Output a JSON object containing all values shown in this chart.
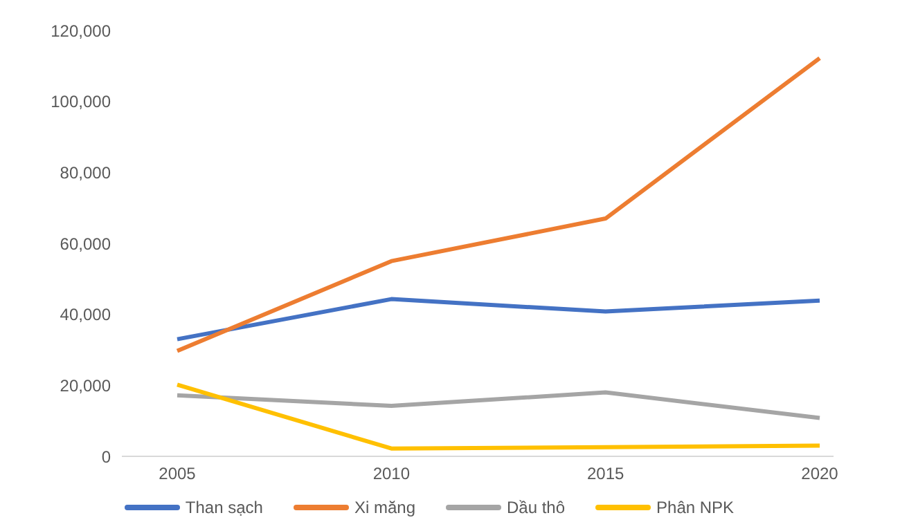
{
  "chart_data": {
    "type": "line",
    "categories": [
      "2005",
      "2010",
      "2015",
      "2020"
    ],
    "series": [
      {
        "name": "Than sạch",
        "color": "#4472c4",
        "values": [
          33000,
          44300,
          40800,
          43900
        ]
      },
      {
        "name": "Xi măng",
        "color": "#ed7d31",
        "values": [
          29700,
          55000,
          67000,
          112200
        ]
      },
      {
        "name": "Dầu thô",
        "color": "#a5a5a5",
        "values": [
          17200,
          14200,
          18000,
          10800
        ]
      },
      {
        "name": "Phân NPK",
        "color": "#ffc000",
        "values": [
          20200,
          2200,
          2600,
          3000
        ]
      }
    ],
    "ylim": [
      0,
      120000
    ],
    "yticks": [
      {
        "value": 0,
        "label": "0"
      },
      {
        "value": 20000,
        "label": "20,000"
      },
      {
        "value": 40000,
        "label": "40,000"
      },
      {
        "value": 60000,
        "label": "60,000"
      },
      {
        "value": 80000,
        "label": "80,000"
      },
      {
        "value": 100000,
        "label": "100,000"
      },
      {
        "value": 120000,
        "label": "120,000"
      }
    ],
    "grid": false,
    "legend": "bottom",
    "marker": "none",
    "line_style": "solid"
  }
}
